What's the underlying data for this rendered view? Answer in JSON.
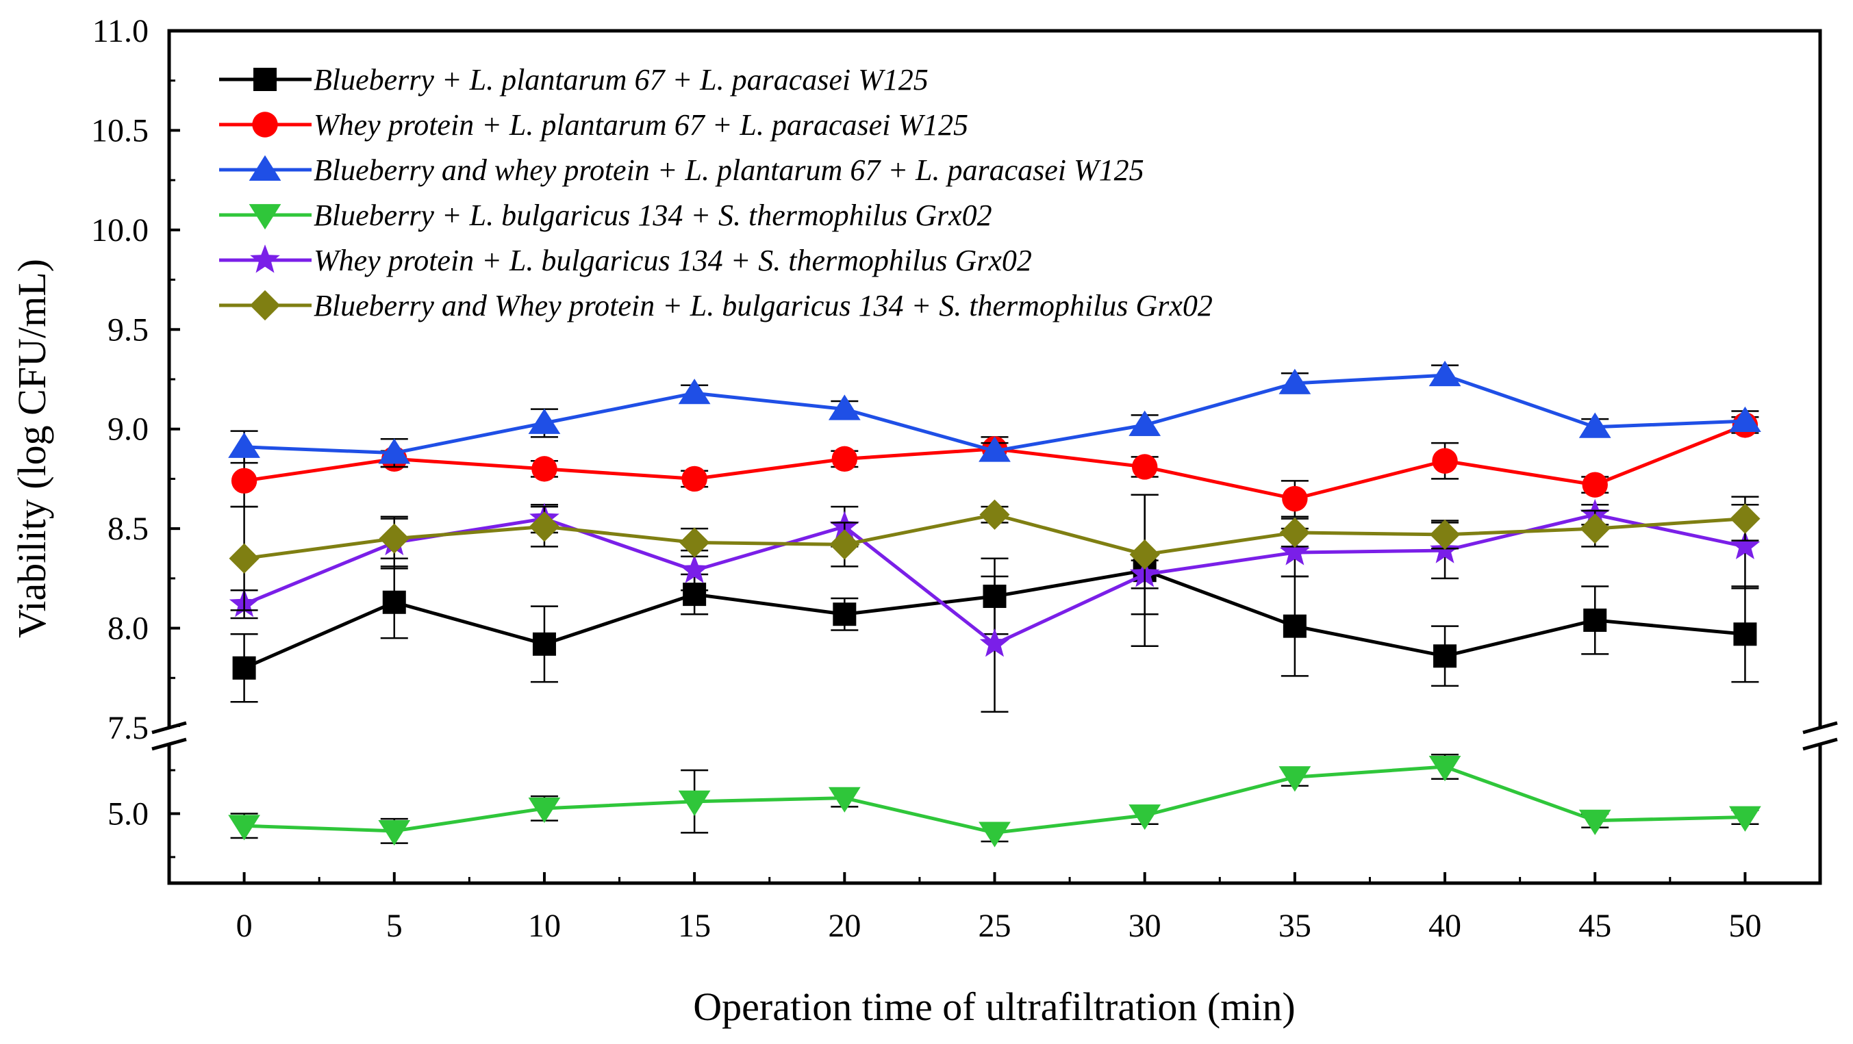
{
  "chart_data": {
    "type": "line",
    "title": "",
    "xlabel": "Operation time of ultrafiltration (min)",
    "ylabel": "Viability (log CFU/mL)",
    "x": [
      0,
      5,
      10,
      15,
      20,
      25,
      30,
      35,
      40,
      45,
      50
    ],
    "x_tick_labels": [
      "0",
      "5",
      "10",
      "15",
      "20",
      "25",
      "30",
      "35",
      "40",
      "45",
      "50"
    ],
    "xlim": [
      -2.5,
      52.5
    ],
    "y_axis_break": true,
    "y_upper_range": [
      7.5,
      11.0
    ],
    "y_lower_range": [
      4.6,
      5.4
    ],
    "y_tick_labels_upper": [
      "7.5",
      "8.0",
      "8.5",
      "9.0",
      "9.5",
      "10.0",
      "10.5",
      "11.0"
    ],
    "y_tick_labels_lower": [
      "5.0"
    ],
    "legend_position": "top-left",
    "series": [
      {
        "name": "Blueberry + L. plantarum 67 + L. paracasei W125",
        "color": "#000000",
        "marker": "square",
        "values": [
          7.8,
          8.13,
          7.92,
          8.17,
          8.07,
          8.16,
          8.29,
          8.01,
          7.86,
          8.04,
          7.97
        ],
        "errors": [
          0.17,
          0.18,
          0.19,
          0.1,
          0.08,
          0.19,
          0.38,
          0.25,
          0.15,
          0.17,
          0.24
        ]
      },
      {
        "name": "Whey protein + L. plantarum 67 + L. paracasei W125",
        "color": "#ff0000",
        "marker": "circle",
        "values": [
          8.74,
          8.85,
          8.8,
          8.75,
          8.85,
          8.9,
          8.81,
          8.65,
          8.84,
          8.72,
          9.02
        ],
        "errors": [
          0.13,
          0.04,
          0.04,
          0.04,
          0.04,
          0.06,
          0.05,
          0.09,
          0.09,
          0.04,
          0.04
        ]
      },
      {
        "name": "Blueberry and whey protein + L. plantarum 67 + L. paracasei W125",
        "color": "#1f4fe6",
        "marker": "triangle-up",
        "values": [
          8.91,
          8.88,
          9.03,
          9.18,
          9.1,
          8.89,
          9.02,
          9.23,
          9.27,
          9.01,
          9.04
        ],
        "errors": [
          0.08,
          0.07,
          0.07,
          0.04,
          0.04,
          0.04,
          0.05,
          0.05,
          0.05,
          0.04,
          0.05
        ]
      },
      {
        "name": "Blueberry + L. bulgaricus 134 + S. thermophilus Grx02",
        "color": "#2fc63a",
        "marker": "triangle-down",
        "values": [
          4.93,
          4.9,
          5.03,
          5.07,
          5.09,
          4.89,
          4.99,
          5.21,
          5.27,
          4.96,
          4.98
        ],
        "errors": [
          0.07,
          0.07,
          0.07,
          0.18,
          0.05,
          0.05,
          0.05,
          0.05,
          0.07,
          0.04,
          0.04
        ]
      },
      {
        "name": "Whey protein + L. bulgaricus 134 + S. thermophilus Grx02",
        "color": "#7a1fe8",
        "marker": "star",
        "values": [
          8.12,
          8.43,
          8.55,
          8.29,
          8.51,
          7.92,
          8.27,
          8.38,
          8.39,
          8.57,
          8.41
        ],
        "errors": [
          0.07,
          0.13,
          0.07,
          0.1,
          0.1,
          0.34,
          0.07,
          0.12,
          0.14,
          0.05,
          0.21
        ]
      },
      {
        "name": "Blueberry and Whey protein + L. bulgaricus 134 + S. thermophilus Grx02",
        "color": "#7f7f12",
        "marker": "diamond",
        "values": [
          8.35,
          8.45,
          8.51,
          8.43,
          8.42,
          8.57,
          8.37,
          8.48,
          8.47,
          8.5,
          8.55
        ],
        "errors": [
          0.26,
          0.1,
          0.1,
          0.07,
          0.11,
          0.04,
          0.3,
          0.07,
          0.07,
          0.09,
          0.11
        ]
      }
    ]
  }
}
